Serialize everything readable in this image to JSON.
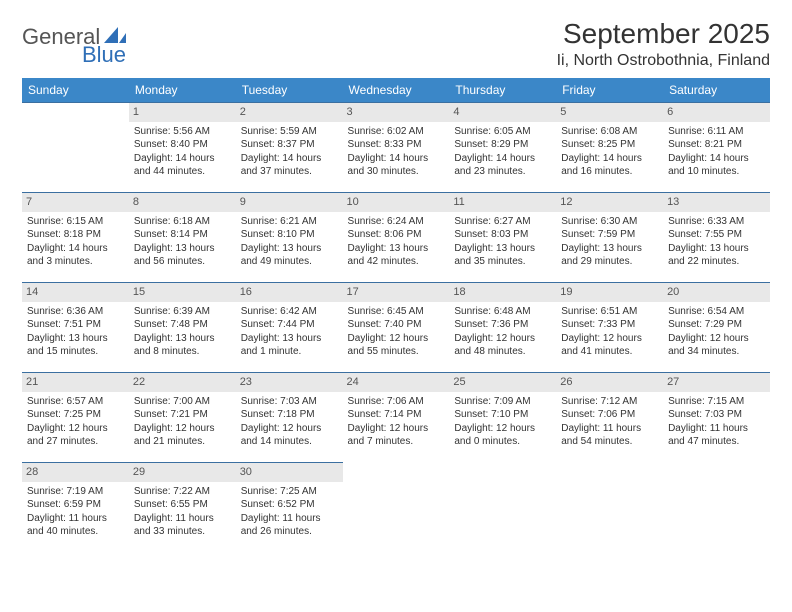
{
  "logo": {
    "text1": "General",
    "text2": "Blue"
  },
  "title": "September 2025",
  "location": "Ii, North Ostrobothnia, Finland",
  "colors": {
    "header_bg": "#3b87c8",
    "header_text": "#ffffff",
    "daynum_bg": "#e8e8e8",
    "border": "#3b6fa0",
    "logo_blue": "#2f6fb7"
  },
  "weekdays": [
    "Sunday",
    "Monday",
    "Tuesday",
    "Wednesday",
    "Thursday",
    "Friday",
    "Saturday"
  ],
  "weeks": [
    [
      null,
      {
        "day": "1",
        "sunrise": "Sunrise: 5:56 AM",
        "sunset": "Sunset: 8:40 PM",
        "daylight1": "Daylight: 14 hours",
        "daylight2": "and 44 minutes."
      },
      {
        "day": "2",
        "sunrise": "Sunrise: 5:59 AM",
        "sunset": "Sunset: 8:37 PM",
        "daylight1": "Daylight: 14 hours",
        "daylight2": "and 37 minutes."
      },
      {
        "day": "3",
        "sunrise": "Sunrise: 6:02 AM",
        "sunset": "Sunset: 8:33 PM",
        "daylight1": "Daylight: 14 hours",
        "daylight2": "and 30 minutes."
      },
      {
        "day": "4",
        "sunrise": "Sunrise: 6:05 AM",
        "sunset": "Sunset: 8:29 PM",
        "daylight1": "Daylight: 14 hours",
        "daylight2": "and 23 minutes."
      },
      {
        "day": "5",
        "sunrise": "Sunrise: 6:08 AM",
        "sunset": "Sunset: 8:25 PM",
        "daylight1": "Daylight: 14 hours",
        "daylight2": "and 16 minutes."
      },
      {
        "day": "6",
        "sunrise": "Sunrise: 6:11 AM",
        "sunset": "Sunset: 8:21 PM",
        "daylight1": "Daylight: 14 hours",
        "daylight2": "and 10 minutes."
      }
    ],
    [
      {
        "day": "7",
        "sunrise": "Sunrise: 6:15 AM",
        "sunset": "Sunset: 8:18 PM",
        "daylight1": "Daylight: 14 hours",
        "daylight2": "and 3 minutes."
      },
      {
        "day": "8",
        "sunrise": "Sunrise: 6:18 AM",
        "sunset": "Sunset: 8:14 PM",
        "daylight1": "Daylight: 13 hours",
        "daylight2": "and 56 minutes."
      },
      {
        "day": "9",
        "sunrise": "Sunrise: 6:21 AM",
        "sunset": "Sunset: 8:10 PM",
        "daylight1": "Daylight: 13 hours",
        "daylight2": "and 49 minutes."
      },
      {
        "day": "10",
        "sunrise": "Sunrise: 6:24 AM",
        "sunset": "Sunset: 8:06 PM",
        "daylight1": "Daylight: 13 hours",
        "daylight2": "and 42 minutes."
      },
      {
        "day": "11",
        "sunrise": "Sunrise: 6:27 AM",
        "sunset": "Sunset: 8:03 PM",
        "daylight1": "Daylight: 13 hours",
        "daylight2": "and 35 minutes."
      },
      {
        "day": "12",
        "sunrise": "Sunrise: 6:30 AM",
        "sunset": "Sunset: 7:59 PM",
        "daylight1": "Daylight: 13 hours",
        "daylight2": "and 29 minutes."
      },
      {
        "day": "13",
        "sunrise": "Sunrise: 6:33 AM",
        "sunset": "Sunset: 7:55 PM",
        "daylight1": "Daylight: 13 hours",
        "daylight2": "and 22 minutes."
      }
    ],
    [
      {
        "day": "14",
        "sunrise": "Sunrise: 6:36 AM",
        "sunset": "Sunset: 7:51 PM",
        "daylight1": "Daylight: 13 hours",
        "daylight2": "and 15 minutes."
      },
      {
        "day": "15",
        "sunrise": "Sunrise: 6:39 AM",
        "sunset": "Sunset: 7:48 PM",
        "daylight1": "Daylight: 13 hours",
        "daylight2": "and 8 minutes."
      },
      {
        "day": "16",
        "sunrise": "Sunrise: 6:42 AM",
        "sunset": "Sunset: 7:44 PM",
        "daylight1": "Daylight: 13 hours",
        "daylight2": "and 1 minute."
      },
      {
        "day": "17",
        "sunrise": "Sunrise: 6:45 AM",
        "sunset": "Sunset: 7:40 PM",
        "daylight1": "Daylight: 12 hours",
        "daylight2": "and 55 minutes."
      },
      {
        "day": "18",
        "sunrise": "Sunrise: 6:48 AM",
        "sunset": "Sunset: 7:36 PM",
        "daylight1": "Daylight: 12 hours",
        "daylight2": "and 48 minutes."
      },
      {
        "day": "19",
        "sunrise": "Sunrise: 6:51 AM",
        "sunset": "Sunset: 7:33 PM",
        "daylight1": "Daylight: 12 hours",
        "daylight2": "and 41 minutes."
      },
      {
        "day": "20",
        "sunrise": "Sunrise: 6:54 AM",
        "sunset": "Sunset: 7:29 PM",
        "daylight1": "Daylight: 12 hours",
        "daylight2": "and 34 minutes."
      }
    ],
    [
      {
        "day": "21",
        "sunrise": "Sunrise: 6:57 AM",
        "sunset": "Sunset: 7:25 PM",
        "daylight1": "Daylight: 12 hours",
        "daylight2": "and 27 minutes."
      },
      {
        "day": "22",
        "sunrise": "Sunrise: 7:00 AM",
        "sunset": "Sunset: 7:21 PM",
        "daylight1": "Daylight: 12 hours",
        "daylight2": "and 21 minutes."
      },
      {
        "day": "23",
        "sunrise": "Sunrise: 7:03 AM",
        "sunset": "Sunset: 7:18 PM",
        "daylight1": "Daylight: 12 hours",
        "daylight2": "and 14 minutes."
      },
      {
        "day": "24",
        "sunrise": "Sunrise: 7:06 AM",
        "sunset": "Sunset: 7:14 PM",
        "daylight1": "Daylight: 12 hours",
        "daylight2": "and 7 minutes."
      },
      {
        "day": "25",
        "sunrise": "Sunrise: 7:09 AM",
        "sunset": "Sunset: 7:10 PM",
        "daylight1": "Daylight: 12 hours",
        "daylight2": "and 0 minutes."
      },
      {
        "day": "26",
        "sunrise": "Sunrise: 7:12 AM",
        "sunset": "Sunset: 7:06 PM",
        "daylight1": "Daylight: 11 hours",
        "daylight2": "and 54 minutes."
      },
      {
        "day": "27",
        "sunrise": "Sunrise: 7:15 AM",
        "sunset": "Sunset: 7:03 PM",
        "daylight1": "Daylight: 11 hours",
        "daylight2": "and 47 minutes."
      }
    ],
    [
      {
        "day": "28",
        "sunrise": "Sunrise: 7:19 AM",
        "sunset": "Sunset: 6:59 PM",
        "daylight1": "Daylight: 11 hours",
        "daylight2": "and 40 minutes."
      },
      {
        "day": "29",
        "sunrise": "Sunrise: 7:22 AM",
        "sunset": "Sunset: 6:55 PM",
        "daylight1": "Daylight: 11 hours",
        "daylight2": "and 33 minutes."
      },
      {
        "day": "30",
        "sunrise": "Sunrise: 7:25 AM",
        "sunset": "Sunset: 6:52 PM",
        "daylight1": "Daylight: 11 hours",
        "daylight2": "and 26 minutes."
      },
      null,
      null,
      null,
      null
    ]
  ]
}
